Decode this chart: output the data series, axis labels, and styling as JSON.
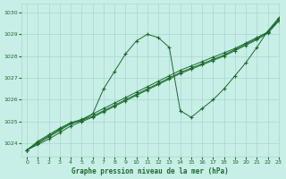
{
  "title": "Graphe pression niveau de la mer (hPa)",
  "bg_color": "#c8eee8",
  "grid_color": "#a8d8cc",
  "line_color": "#1a6b2a",
  "xlim": [
    -0.5,
    23
  ],
  "ylim": [
    1023.4,
    1030.4
  ],
  "yticks": [
    1024,
    1025,
    1026,
    1027,
    1028,
    1029,
    1030
  ],
  "xticks": [
    0,
    1,
    2,
    3,
    4,
    5,
    6,
    7,
    8,
    9,
    10,
    11,
    12,
    13,
    14,
    15,
    16,
    17,
    18,
    19,
    20,
    21,
    22,
    23
  ],
  "wavy_x": [
    0,
    1,
    2,
    3,
    4,
    5,
    6,
    7,
    8,
    9,
    10,
    11,
    12,
    13,
    14,
    15,
    16,
    17,
    18,
    19,
    20,
    21,
    22,
    23
  ],
  "wavy_y": [
    1023.7,
    1024.1,
    1024.4,
    1024.7,
    1024.95,
    1025.05,
    1025.35,
    1026.5,
    1027.3,
    1028.1,
    1028.7,
    1029.0,
    1028.85,
    1028.4,
    1025.5,
    1025.2,
    1025.6,
    1026.0,
    1026.5,
    1027.1,
    1027.7,
    1028.4,
    1029.15,
    1029.75
  ],
  "line1_x": [
    0,
    1,
    2,
    3,
    4,
    5,
    6,
    7,
    8,
    9,
    10,
    11,
    12,
    13,
    14,
    15,
    16,
    17,
    18,
    19,
    20,
    21,
    22,
    23
  ],
  "line1_y": [
    1023.7,
    1024.05,
    1024.35,
    1024.65,
    1024.95,
    1025.1,
    1025.35,
    1025.6,
    1025.85,
    1026.1,
    1026.35,
    1026.6,
    1026.85,
    1027.1,
    1027.35,
    1027.55,
    1027.75,
    1027.95,
    1028.15,
    1028.35,
    1028.6,
    1028.85,
    1029.1,
    1029.7
  ],
  "line2_x": [
    0,
    1,
    2,
    3,
    4,
    5,
    6,
    7,
    8,
    9,
    10,
    11,
    12,
    13,
    14,
    15,
    16,
    17,
    18,
    19,
    20,
    21,
    22,
    23
  ],
  "line2_y": [
    1023.7,
    1024.0,
    1024.3,
    1024.6,
    1024.9,
    1025.05,
    1025.25,
    1025.5,
    1025.75,
    1026.0,
    1026.25,
    1026.5,
    1026.75,
    1027.0,
    1027.25,
    1027.45,
    1027.65,
    1027.85,
    1028.05,
    1028.3,
    1028.55,
    1028.8,
    1029.1,
    1029.65
  ],
  "line3_x": [
    0,
    1,
    2,
    3,
    4,
    5,
    6,
    7,
    8,
    9,
    10,
    11,
    12,
    13,
    14,
    15,
    16,
    17,
    18,
    19,
    20,
    21,
    22,
    23
  ],
  "line3_y": [
    1023.7,
    1023.95,
    1024.2,
    1024.5,
    1024.8,
    1025.0,
    1025.2,
    1025.45,
    1025.7,
    1025.95,
    1026.2,
    1026.45,
    1026.7,
    1026.95,
    1027.2,
    1027.4,
    1027.6,
    1027.8,
    1028.0,
    1028.25,
    1028.5,
    1028.75,
    1029.05,
    1029.6
  ]
}
